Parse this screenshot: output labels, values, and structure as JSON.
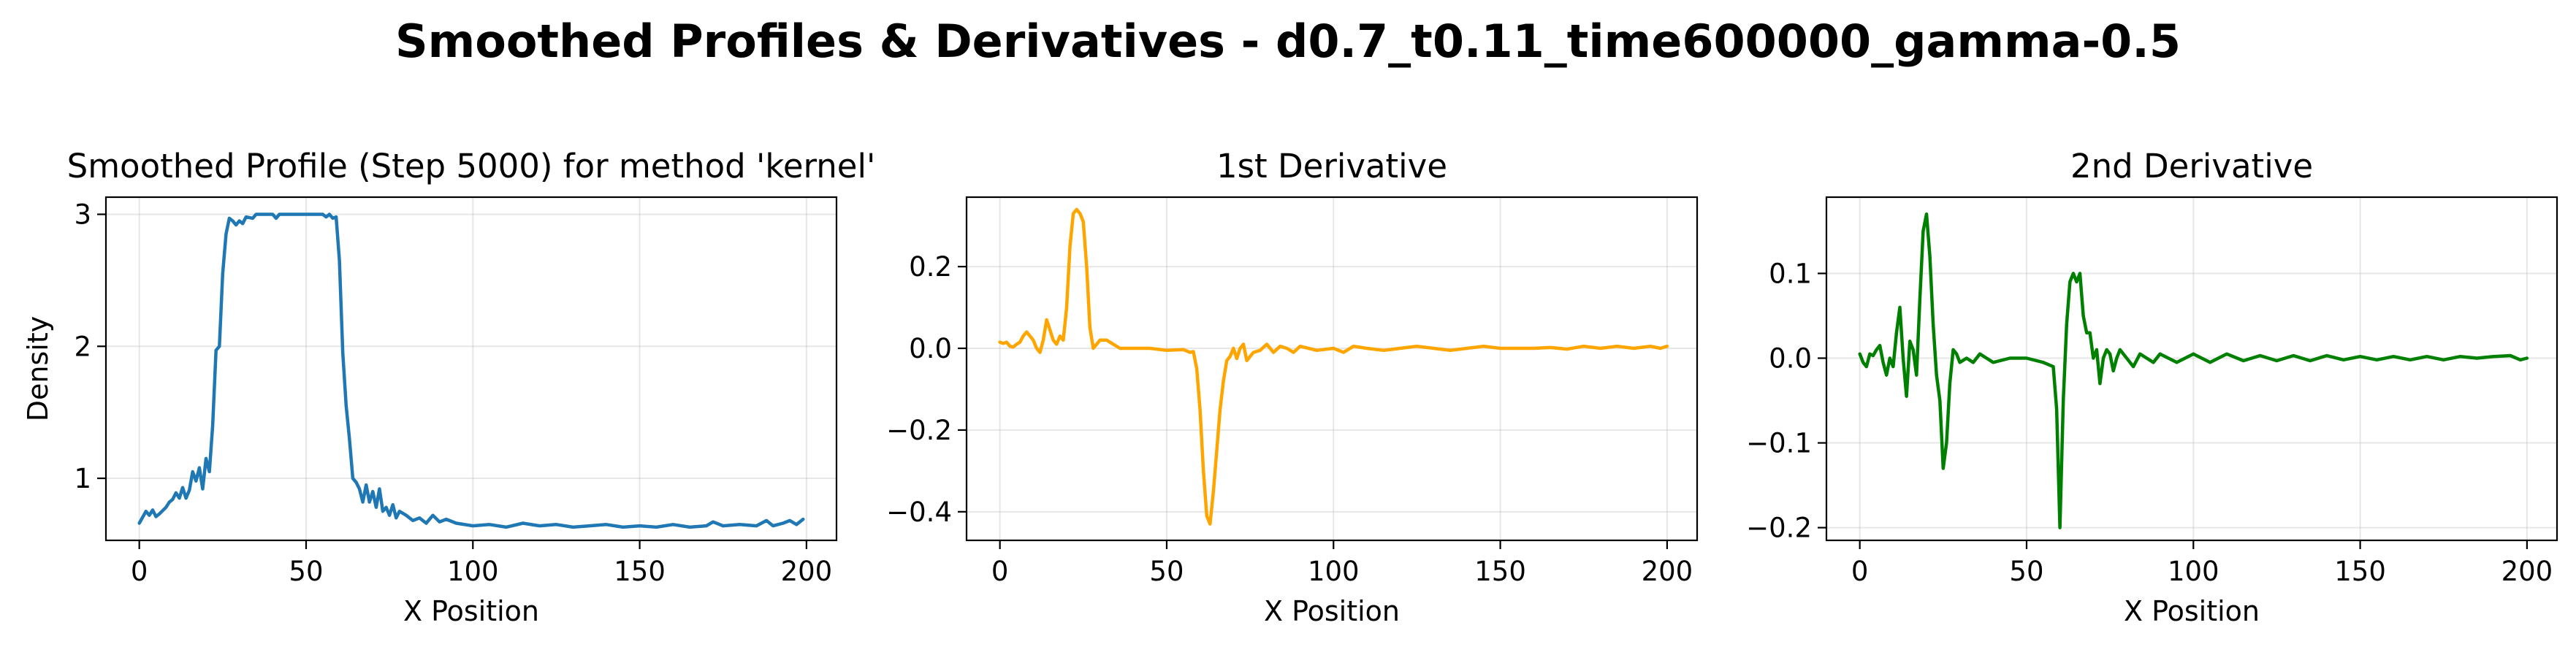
{
  "figure": {
    "title": "Smoothed Profiles & Derivatives - d0.7_t0.11_time600000_gamma-0.5"
  },
  "chart_data": [
    {
      "type": "line",
      "title": "Smoothed Profile (Step 5000) for method 'kernel'",
      "xlabel": "X Position",
      "ylabel": "Density",
      "xlim": [
        -10,
        209
      ],
      "ylim": [
        0.53,
        3.13
      ],
      "xticks": [
        0,
        50,
        100,
        150,
        200
      ],
      "yticks": [
        1,
        2,
        3
      ],
      "grid": true,
      "series": [
        {
          "color": "#1f77b4",
          "points": [
            [
              0,
              0.66
            ],
            [
              2,
              0.75
            ],
            [
              3,
              0.72
            ],
            [
              4,
              0.76
            ],
            [
              5,
              0.71
            ],
            [
              6,
              0.73
            ],
            [
              8,
              0.78
            ],
            [
              9,
              0.82
            ],
            [
              10,
              0.84
            ],
            [
              11,
              0.89
            ],
            [
              12,
              0.85
            ],
            [
              13,
              0.93
            ],
            [
              14,
              0.85
            ],
            [
              15,
              0.91
            ],
            [
              16,
              1.05
            ],
            [
              17,
              0.98
            ],
            [
              18,
              1.08
            ],
            [
              19,
              0.92
            ],
            [
              20,
              1.15
            ],
            [
              21,
              1.05
            ],
            [
              22,
              1.4
            ],
            [
              23,
              1.97
            ],
            [
              24,
              2.0
            ],
            [
              25,
              2.55
            ],
            [
              26,
              2.85
            ],
            [
              27,
              2.97
            ],
            [
              28,
              2.95
            ],
            [
              29,
              2.92
            ],
            [
              30,
              2.95
            ],
            [
              31,
              2.93
            ],
            [
              32,
              2.98
            ],
            [
              34,
              2.97
            ],
            [
              35,
              3.0
            ],
            [
              40,
              3.0
            ],
            [
              41,
              2.97
            ],
            [
              42,
              3.0
            ],
            [
              55,
              3.0
            ],
            [
              56,
              2.98
            ],
            [
              57,
              3.0
            ],
            [
              58,
              2.97
            ],
            [
              59,
              2.98
            ],
            [
              60,
              2.65
            ],
            [
              61,
              1.95
            ],
            [
              62,
              1.55
            ],
            [
              63,
              1.3
            ],
            [
              64,
              1.0
            ],
            [
              65,
              0.97
            ],
            [
              66,
              0.92
            ],
            [
              67,
              0.82
            ],
            [
              68,
              0.95
            ],
            [
              69,
              0.82
            ],
            [
              70,
              0.9
            ],
            [
              71,
              0.78
            ],
            [
              72,
              0.92
            ],
            [
              73,
              0.75
            ],
            [
              74,
              0.78
            ],
            [
              75,
              0.72
            ],
            [
              76,
              0.8
            ],
            [
              77,
              0.7
            ],
            [
              78,
              0.75
            ],
            [
              80,
              0.72
            ],
            [
              82,
              0.68
            ],
            [
              84,
              0.7
            ],
            [
              86,
              0.66
            ],
            [
              88,
              0.72
            ],
            [
              90,
              0.67
            ],
            [
              92,
              0.69
            ],
            [
              95,
              0.66
            ],
            [
              100,
              0.64
            ],
            [
              105,
              0.65
            ],
            [
              110,
              0.63
            ],
            [
              115,
              0.66
            ],
            [
              120,
              0.64
            ],
            [
              125,
              0.65
            ],
            [
              130,
              0.63
            ],
            [
              135,
              0.64
            ],
            [
              140,
              0.65
            ],
            [
              145,
              0.63
            ],
            [
              150,
              0.64
            ],
            [
              155,
              0.63
            ],
            [
              160,
              0.65
            ],
            [
              165,
              0.63
            ],
            [
              170,
              0.64
            ],
            [
              172,
              0.67
            ],
            [
              175,
              0.64
            ],
            [
              180,
              0.65
            ],
            [
              185,
              0.64
            ],
            [
              188,
              0.68
            ],
            [
              190,
              0.64
            ],
            [
              193,
              0.66
            ],
            [
              195,
              0.68
            ],
            [
              197,
              0.65
            ],
            [
              199,
              0.69
            ]
          ]
        }
      ]
    },
    {
      "type": "line",
      "title": "1st Derivative",
      "xlabel": "X Position",
      "ylabel": "",
      "xlim": [
        -10,
        209
      ],
      "ylim": [
        -0.47,
        0.37
      ],
      "xticks": [
        0,
        50,
        100,
        150,
        200
      ],
      "yticks": [
        -0.4,
        -0.2,
        0.0,
        0.2
      ],
      "grid": true,
      "series": [
        {
          "color": "#ffa500",
          "points": [
            [
              0,
              0.015
            ],
            [
              1,
              0.012
            ],
            [
              2,
              0.015
            ],
            [
              3,
              0.005
            ],
            [
              4,
              0.003
            ],
            [
              5,
              0.01
            ],
            [
              6,
              0.015
            ],
            [
              7,
              0.03
            ],
            [
              8,
              0.04
            ],
            [
              9,
              0.03
            ],
            [
              10,
              0.02
            ],
            [
              11,
              0.0
            ],
            [
              12,
              -0.01
            ],
            [
              13,
              0.02
            ],
            [
              14,
              0.07
            ],
            [
              15,
              0.045
            ],
            [
              16,
              0.02
            ],
            [
              17,
              0.01
            ],
            [
              18,
              0.03
            ],
            [
              19,
              0.02
            ],
            [
              20,
              0.1
            ],
            [
              21,
              0.25
            ],
            [
              22,
              0.33
            ],
            [
              23,
              0.34
            ],
            [
              24,
              0.33
            ],
            [
              25,
              0.31
            ],
            [
              26,
              0.2
            ],
            [
              27,
              0.05
            ],
            [
              28,
              0.0
            ],
            [
              29,
              0.01
            ],
            [
              30,
              0.02
            ],
            [
              32,
              0.02
            ],
            [
              34,
              0.01
            ],
            [
              36,
              0.0
            ],
            [
              40,
              0.0
            ],
            [
              45,
              0.0
            ],
            [
              50,
              -0.005
            ],
            [
              55,
              -0.003
            ],
            [
              57,
              -0.01
            ],
            [
              58,
              -0.008
            ],
            [
              59,
              -0.05
            ],
            [
              60,
              -0.15
            ],
            [
              61,
              -0.3
            ],
            [
              62,
              -0.41
            ],
            [
              63,
              -0.43
            ],
            [
              64,
              -0.35
            ],
            [
              65,
              -0.25
            ],
            [
              66,
              -0.15
            ],
            [
              67,
              -0.08
            ],
            [
              68,
              -0.03
            ],
            [
              69,
              -0.02
            ],
            [
              70,
              0.0
            ],
            [
              71,
              -0.025
            ],
            [
              72,
              0.0
            ],
            [
              73,
              0.01
            ],
            [
              74,
              -0.03
            ],
            [
              75,
              -0.02
            ],
            [
              76,
              -0.01
            ],
            [
              78,
              -0.005
            ],
            [
              80,
              0.01
            ],
            [
              82,
              -0.01
            ],
            [
              84,
              0.005
            ],
            [
              86,
              0.0
            ],
            [
              88,
              -0.01
            ],
            [
              90,
              0.005
            ],
            [
              95,
              -0.005
            ],
            [
              100,
              0.0
            ],
            [
              103,
              -0.01
            ],
            [
              106,
              0.005
            ],
            [
              110,
              0.0
            ],
            [
              115,
              -0.005
            ],
            [
              120,
              0.0
            ],
            [
              125,
              0.005
            ],
            [
              130,
              0.0
            ],
            [
              135,
              -0.005
            ],
            [
              140,
              0.0
            ],
            [
              145,
              0.005
            ],
            [
              150,
              0.0
            ],
            [
              155,
              0.0
            ],
            [
              160,
              0.0
            ],
            [
              165,
              0.002
            ],
            [
              170,
              -0.002
            ],
            [
              175,
              0.005
            ],
            [
              180,
              0.0
            ],
            [
              185,
              0.005
            ],
            [
              190,
              0.0
            ],
            [
              195,
              0.005
            ],
            [
              198,
              0.0
            ],
            [
              200,
              0.005
            ]
          ]
        }
      ]
    },
    {
      "type": "line",
      "title": "2nd Derivative",
      "xlabel": "X Position",
      "ylabel": "",
      "xlim": [
        -10,
        209
      ],
      "ylim": [
        -0.215,
        0.19
      ],
      "xticks": [
        0,
        50,
        100,
        150,
        200
      ],
      "yticks": [
        -0.2,
        -0.1,
        0.0,
        0.1
      ],
      "grid": true,
      "series": [
        {
          "color": "#008000",
          "points": [
            [
              0,
              0.005
            ],
            [
              1,
              -0.005
            ],
            [
              2,
              -0.01
            ],
            [
              3,
              0.005
            ],
            [
              4,
              0.003
            ],
            [
              5,
              0.01
            ],
            [
              6,
              0.015
            ],
            [
              7,
              -0.005
            ],
            [
              8,
              -0.02
            ],
            [
              9,
              0.0
            ],
            [
              10,
              -0.01
            ],
            [
              11,
              0.03
            ],
            [
              12,
              0.06
            ],
            [
              13,
              0.0
            ],
            [
              14,
              -0.045
            ],
            [
              15,
              0.02
            ],
            [
              16,
              0.01
            ],
            [
              17,
              -0.02
            ],
            [
              18,
              0.07
            ],
            [
              19,
              0.15
            ],
            [
              20,
              0.17
            ],
            [
              21,
              0.12
            ],
            [
              22,
              0.04
            ],
            [
              23,
              -0.02
            ],
            [
              24,
              -0.05
            ],
            [
              25,
              -0.13
            ],
            [
              26,
              -0.1
            ],
            [
              27,
              -0.03
            ],
            [
              28,
              0.01
            ],
            [
              29,
              0.005
            ],
            [
              30,
              -0.005
            ],
            [
              32,
              0.0
            ],
            [
              34,
              -0.005
            ],
            [
              36,
              0.005
            ],
            [
              38,
              0.0
            ],
            [
              40,
              -0.005
            ],
            [
              45,
              0.0
            ],
            [
              50,
              0.0
            ],
            [
              55,
              -0.005
            ],
            [
              58,
              -0.01
            ],
            [
              59,
              -0.06
            ],
            [
              60,
              -0.2
            ],
            [
              61,
              -0.05
            ],
            [
              62,
              0.04
            ],
            [
              63,
              0.09
            ],
            [
              64,
              0.1
            ],
            [
              65,
              0.09
            ],
            [
              66,
              0.1
            ],
            [
              67,
              0.05
            ],
            [
              68,
              0.03
            ],
            [
              69,
              0.03
            ],
            [
              70,
              0.0
            ],
            [
              71,
              0.01
            ],
            [
              72,
              -0.03
            ],
            [
              73,
              0.0
            ],
            [
              74,
              0.01
            ],
            [
              75,
              0.005
            ],
            [
              76,
              -0.015
            ],
            [
              77,
              0.0
            ],
            [
              78,
              0.01
            ],
            [
              80,
              0.0
            ],
            [
              82,
              -0.01
            ],
            [
              84,
              0.005
            ],
            [
              86,
              0.0
            ],
            [
              88,
              -0.005
            ],
            [
              90,
              0.005
            ],
            [
              95,
              -0.005
            ],
            [
              100,
              0.005
            ],
            [
              105,
              -0.005
            ],
            [
              110,
              0.005
            ],
            [
              115,
              -0.003
            ],
            [
              120,
              0.003
            ],
            [
              125,
              -0.003
            ],
            [
              130,
              0.003
            ],
            [
              135,
              -0.003
            ],
            [
              140,
              0.003
            ],
            [
              145,
              -0.002
            ],
            [
              150,
              0.002
            ],
            [
              155,
              -0.002
            ],
            [
              160,
              0.002
            ],
            [
              165,
              -0.002
            ],
            [
              170,
              0.002
            ],
            [
              175,
              -0.002
            ],
            [
              180,
              0.002
            ],
            [
              185,
              0.0
            ],
            [
              190,
              0.002
            ],
            [
              195,
              0.003
            ],
            [
              198,
              -0.002
            ],
            [
              200,
              0.0
            ]
          ]
        }
      ]
    }
  ]
}
